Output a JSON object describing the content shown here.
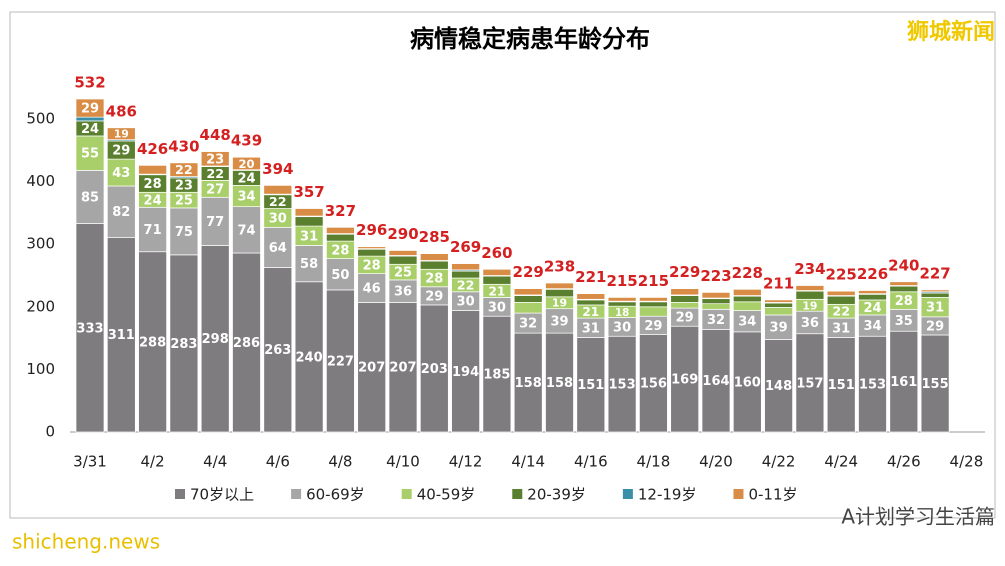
{
  "chart_data": {
    "type": "stacked-bar",
    "title": "病情稳定病患年龄分布",
    "categories": [
      "3/31",
      null,
      "4/2",
      null,
      "4/4",
      null,
      "4/6",
      null,
      "4/8",
      null,
      "4/10",
      null,
      "4/12",
      null,
      "4/14",
      null,
      "4/16",
      null,
      "4/18",
      null,
      "4/20",
      null,
      "4/22",
      null,
      "4/24",
      null,
      "4/26",
      null,
      "4/28"
    ],
    "series": [
      {
        "name": "70岁以上",
        "color": "#7f7c7f",
        "values": [
          333,
          311,
          288,
          283,
          298,
          286,
          263,
          240,
          227,
          207,
          207,
          203,
          194,
          185,
          158,
          158,
          151,
          153,
          156,
          169,
          164,
          160,
          148,
          157,
          151,
          153,
          161,
          155,
          null
        ]
      },
      {
        "name": "60-69岁",
        "color": "#a6a6a6",
        "values": [
          85,
          82,
          71,
          75,
          77,
          74,
          64,
          58,
          50,
          46,
          36,
          29,
          30,
          30,
          32,
          39,
          31,
          30,
          29,
          29,
          32,
          34,
          39,
          36,
          31,
          34,
          35,
          29,
          null
        ]
      },
      {
        "name": "40-59岁",
        "color": "#a9cf6a",
        "values": [
          55,
          43,
          24,
          25,
          27,
          34,
          30,
          31,
          28,
          28,
          25,
          28,
          22,
          21,
          17,
          19,
          21,
          18,
          15,
          9,
          9,
          14,
          12,
          19,
          22,
          24,
          28,
          31,
          null
        ]
      },
      {
        "name": "20-39岁",
        "color": "#5a7f2e",
        "values": [
          24,
          29,
          28,
          23,
          22,
          24,
          22,
          15,
          11,
          11,
          13,
          13,
          11,
          13,
          11,
          12,
          8,
          7,
          8,
          11,
          8,
          9,
          7,
          13,
          13,
          9,
          9,
          7,
          null
        ]
      },
      {
        "name": "12-19岁",
        "color": "#3a8fa8",
        "values": [
          6,
          2,
          1,
          2,
          1,
          1,
          1,
          1,
          1,
          1,
          1,
          1,
          2,
          1,
          1,
          1,
          1,
          1,
          1,
          1,
          1,
          1,
          1,
          1,
          1,
          1,
          1,
          2,
          null
        ]
      },
      {
        "name": "0-11岁",
        "color": "#d98c45",
        "values": [
          29,
          19,
          14,
          22,
          23,
          20,
          14,
          12,
          10,
          3,
          8,
          11,
          10,
          10,
          10,
          9,
          9,
          6,
          6,
          10,
          9,
          10,
          4,
          8,
          7,
          5,
          6,
          3,
          null
        ]
      }
    ],
    "totals": [
      532,
      486,
      426,
      430,
      448,
      439,
      394,
      357,
      327,
      296,
      290,
      285,
      269,
      260,
      229,
      238,
      221,
      215,
      215,
      229,
      223,
      228,
      211,
      234,
      225,
      226,
      240,
      227,
      null
    ],
    "ylim": [
      0,
      540
    ],
    "yticks": [
      0,
      100,
      200,
      300,
      400,
      500
    ],
    "grid": false,
    "legend": "bottom"
  },
  "watermark": "狮城新闻",
  "footer_site": "shicheng.news",
  "footer_account": "A计划学习生活篇"
}
